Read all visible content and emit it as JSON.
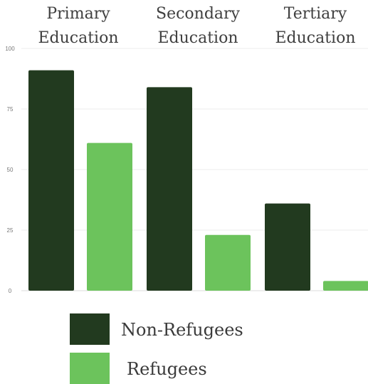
{
  "chart_data": {
    "type": "bar",
    "categories": [
      "Primary Education",
      "Secondary Education",
      "Tertiary Education"
    ],
    "category_label_lines": [
      [
        "Primary",
        "Education"
      ],
      [
        "Secondary",
        "Education"
      ],
      [
        "Tertiary",
        "Education"
      ]
    ],
    "series": [
      {
        "name": "Non-Refugees",
        "values": [
          91,
          84,
          36
        ],
        "color": "#223a1f"
      },
      {
        "name": "Refugees",
        "values": [
          61,
          23,
          4
        ],
        "color": "#6cc35c"
      }
    ],
    "ylim": [
      0,
      100
    ],
    "yticks": [
      "0",
      "25",
      "50",
      "75",
      "100"
    ],
    "xlabel": "",
    "ylabel": "",
    "title": "",
    "grid": true,
    "legend_position": "bottom"
  }
}
